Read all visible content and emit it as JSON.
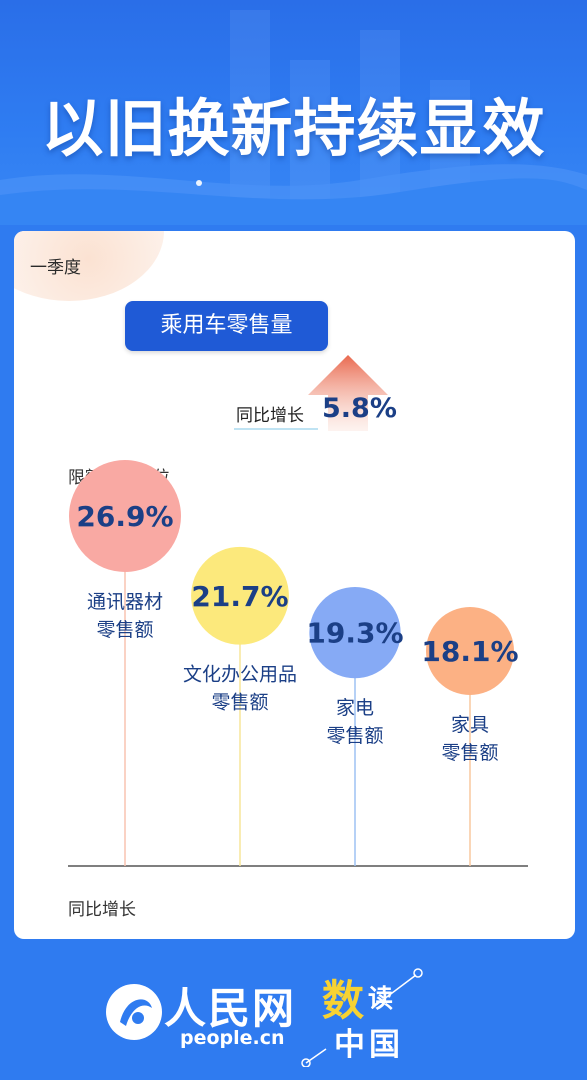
{
  "header": {
    "title": "以旧换新持续显效"
  },
  "card": {
    "period": "一季度",
    "highlight": {
      "label": "乘用车零售量",
      "growth_label": "同比增长",
      "growth_value": "5.8%"
    },
    "section_label": "限额以上单位",
    "axis_label": "同比增长"
  },
  "chart_data": {
    "type": "bubble",
    "categories": [
      "通讯器材零售额",
      "文化办公用品零售额",
      "家电零售额",
      "家具零售额"
    ],
    "label_lines": [
      [
        "通讯器材",
        "零售额"
      ],
      [
        "文化办公用品",
        "零售额"
      ],
      [
        "家电",
        "零售额"
      ],
      [
        "家具",
        "零售额"
      ]
    ],
    "values": [
      26.9,
      21.7,
      19.3,
      18.1
    ],
    "value_labels": [
      "26.9%",
      "21.7%",
      "19.3%",
      "18.1%"
    ],
    "unit": "%",
    "colors": [
      "#f9a9a3",
      "#fce97c",
      "#86aaf5",
      "#fcb184"
    ],
    "stem_colors": [
      "#f8c4b0",
      "#f7e59a",
      "#9dc2f4",
      "#f9c99f"
    ]
  },
  "footer": {
    "brand": "人民网",
    "brand_url": "people.cn",
    "series_logo": {
      "part1": "数",
      "part2": "读",
      "part3": "中国"
    }
  }
}
